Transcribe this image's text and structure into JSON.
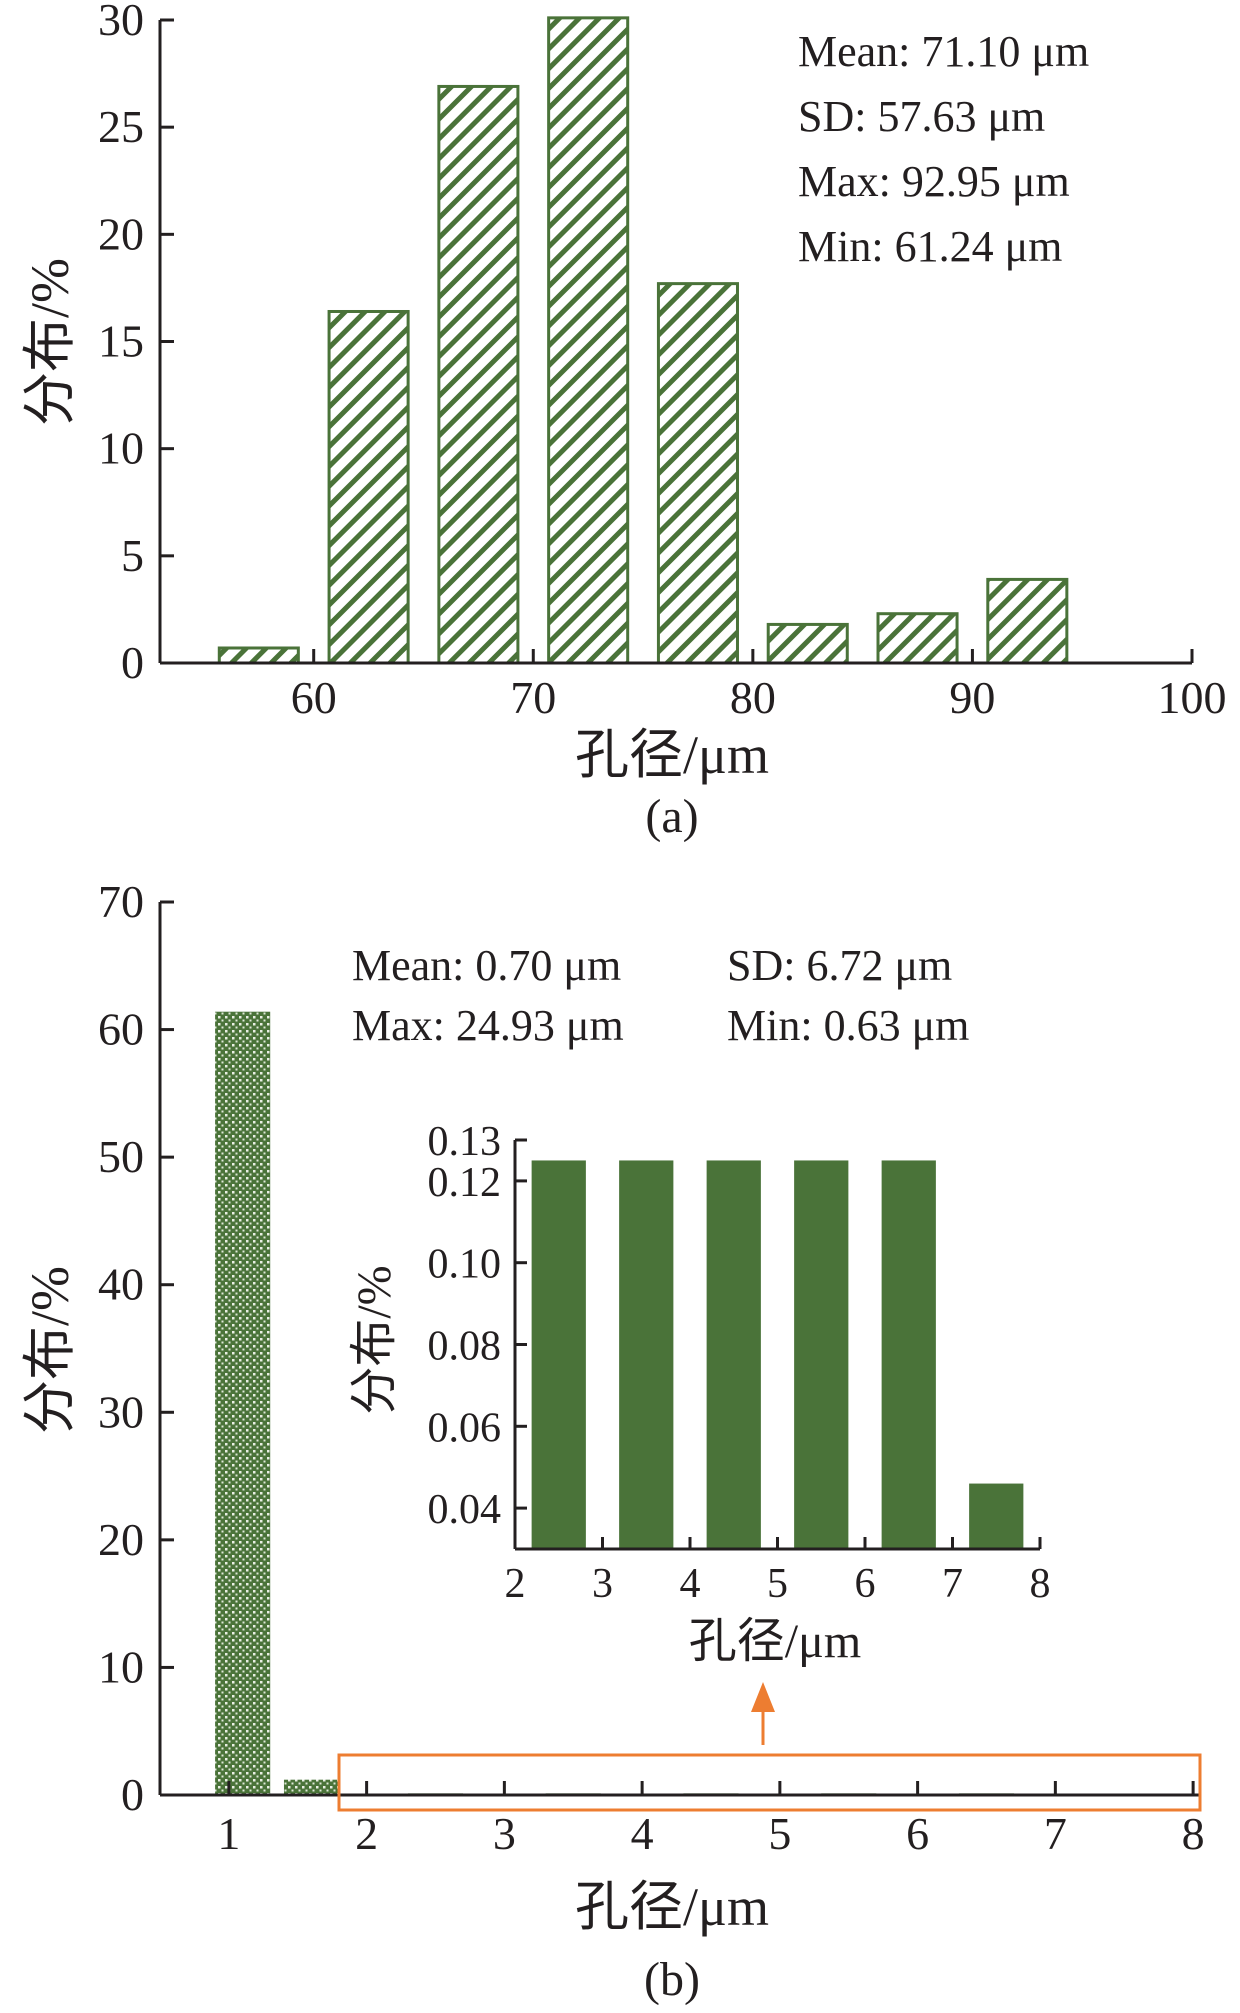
{
  "chart_data": [
    {
      "id": "a",
      "type": "bar",
      "caption": "(a)",
      "xlabel": "孔径/μm",
      "ylabel": "分布/%",
      "xlim": [
        53,
        100
      ],
      "ylim": [
        0,
        30
      ],
      "xticks": [
        60,
        70,
        80,
        90,
        100
      ],
      "yticks": [
        0,
        5,
        10,
        15,
        20,
        25,
        30
      ],
      "pattern": "diagonal-hatch",
      "bar_width": 3.6,
      "x": [
        57.5,
        62.5,
        67.5,
        72.5,
        77.5,
        82.5,
        87.5,
        92.5
      ],
      "values": [
        0.7,
        16.4,
        26.9,
        30.1,
        17.7,
        1.8,
        2.3,
        3.9
      ],
      "stats": [
        "Mean: 71.10 μm",
        "SD: 57.63 μm",
        "Max: 92.95 μm",
        "Min: 61.24 μm"
      ]
    },
    {
      "id": "b",
      "type": "bar",
      "caption": "(b)",
      "xlabel": "孔径/μm",
      "ylabel": "分布/%",
      "xlim": [
        0.5,
        8.05
      ],
      "ylim": [
        0,
        70
      ],
      "xticks": [
        1,
        2,
        3,
        4,
        5,
        6,
        7,
        8
      ],
      "yticks": [
        0,
        10,
        20,
        30,
        40,
        50,
        60,
        70
      ],
      "pattern": "dotted",
      "bar_width": 0.4,
      "x": [
        1.1,
        1.6,
        2.5,
        3.5,
        4.5,
        5.5,
        6.5,
        7.5
      ],
      "values": [
        61.4,
        1.2,
        0.13,
        0.13,
        0.13,
        0.13,
        0.13,
        0.05
      ],
      "stats_left": [
        "Mean: 0.70 μm",
        "Max: 24.93 μm"
      ],
      "stats_right": [
        "SD: 6.72 μm",
        "Min: 0.63 μm"
      ],
      "highlight_range_x": [
        1.85,
        8.1
      ],
      "highlight_color": "#ed7d31"
    },
    {
      "id": "b-inset",
      "type": "bar",
      "xlabel": "孔径/μm",
      "ylabel": "分布/%",
      "xlim": [
        2,
        8
      ],
      "ylim": [
        0.03,
        0.13
      ],
      "xticks": [
        2,
        3,
        4,
        5,
        6,
        7,
        8
      ],
      "yticks": [
        0.04,
        0.06,
        0.08,
        0.1,
        0.12,
        0.13
      ],
      "ytick_labels": [
        "0.04",
        "0.06",
        "0.08",
        "0.10",
        "0.12",
        "0.13"
      ],
      "bar_width": 0.62,
      "x": [
        2.5,
        3.5,
        4.5,
        5.5,
        6.5,
        7.5
      ],
      "values": [
        0.125,
        0.125,
        0.125,
        0.125,
        0.125,
        0.046
      ]
    }
  ],
  "colors": {
    "bar": "#4a7339",
    "axis": "#231f20",
    "highlight": "#ed7d31"
  }
}
